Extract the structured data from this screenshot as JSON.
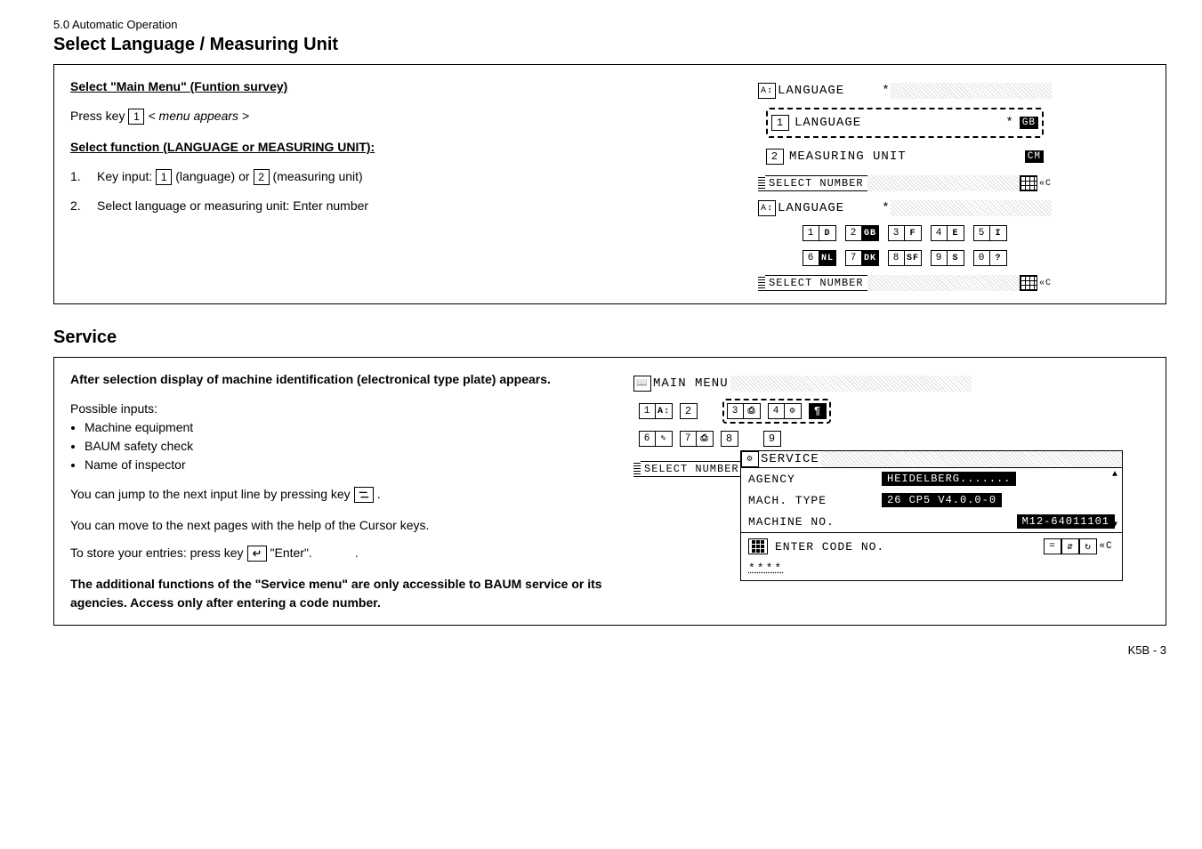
{
  "header": {
    "section_no": "5.0 Automatic Operation",
    "title1": "Select Language / Measuring Unit",
    "title2": "Service",
    "footer_page": "K5B - 3"
  },
  "panel1": {
    "left": {
      "h1": "Select \"Main Menu\" (Funtion survey)",
      "press_key_pre": "Press key",
      "press_key_num": "1",
      "press_key_post": "< menu appears >",
      "h2": "Select function (LANGUAGE or MEASURING UNIT):",
      "step1_pre": "Key input:",
      "step1_k1": "1",
      "step1_mid1": "(language) or",
      "step1_k2": "2",
      "step1_mid2": "(measuring unit)",
      "step2": "Select language or measuring unit: Enter number"
    },
    "right": {
      "title_lang": "LANGUAGE",
      "star": "*",
      "row1_num": "1",
      "row1_text": "LANGUAGE",
      "row1_chip": "GB",
      "row2_num": "2",
      "row2_text": "MEASURING UNIT",
      "row2_chip": "CM",
      "footer_select": "SELECT NUMBER",
      "lang_codes": [
        {
          "n": "1",
          "c": "D"
        },
        {
          "n": "2",
          "c": "GB"
        },
        {
          "n": "3",
          "c": "F"
        },
        {
          "n": "4",
          "c": "E"
        },
        {
          "n": "5",
          "c": "I"
        }
      ],
      "lang_codes2": [
        {
          "n": "6",
          "c": "NL"
        },
        {
          "n": "7",
          "c": "DK"
        },
        {
          "n": "8",
          "c": "SF"
        },
        {
          "n": "9",
          "c": "S"
        },
        {
          "n": "0",
          "c": "?"
        }
      ]
    }
  },
  "panel2": {
    "left": {
      "h1": "After selection display of machine identification (electronical type plate) appears.",
      "p_possible": "Possible inputs:",
      "b1": "Machine equipment",
      "b2": "BAUM safety check",
      "b3": "Name of inspector",
      "jump_pre": "You can jump to the next input line by pressing key",
      "jump_post": ".",
      "move": "You can move to the next pages with the help of the Cursor keys.",
      "store_pre": "To store your entries: press key",
      "store_post": "\"Enter\".",
      "store_end": ".",
      "note": "The additional functions of  the \"Service menu\" are only accessible to BAUM service or its agencies. Access only after entering a code number."
    },
    "right": {
      "main_menu": "MAIN MENU",
      "row1": [
        "1",
        "2",
        "3",
        "4"
      ],
      "row2": [
        "6",
        "7",
        "8",
        "9"
      ],
      "service_label": "SERVICE",
      "select_number": "SELECT NUMBER",
      "agency_label": "AGENCY",
      "agency_val": "HEIDELBERG.......",
      "mach_type_label": "MACH. TYPE",
      "mach_type_val": "26  CP5 V4.0.0-0",
      "mach_no_label": "MACHINE NO.",
      "mach_no_val": "M12-64011101",
      "enter_code": "ENTER CODE NO.",
      "stars": "****"
    }
  }
}
